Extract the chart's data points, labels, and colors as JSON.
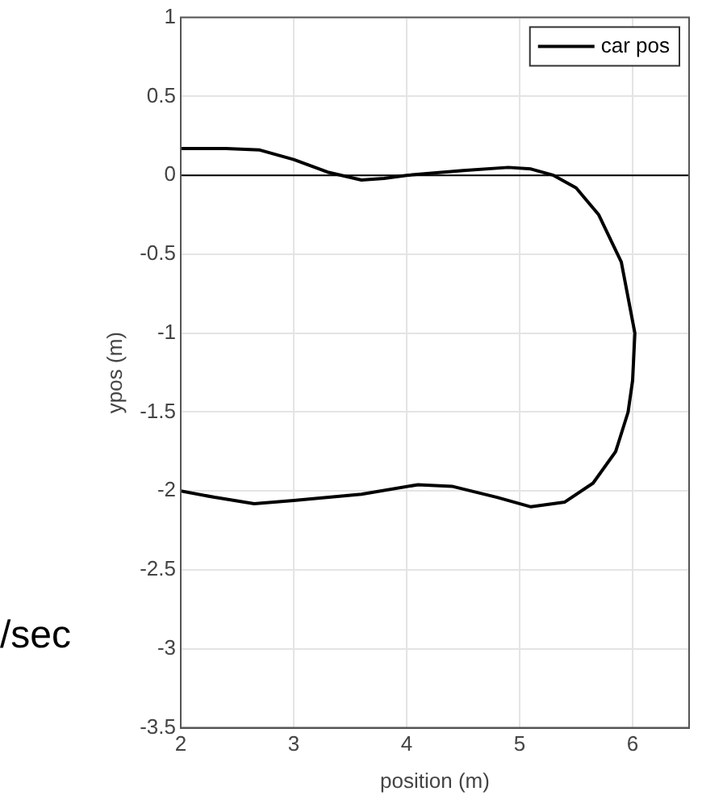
{
  "chart_data": {
    "type": "line",
    "xlabel": "position (m)",
    "ylabel": "ypos (m)",
    "xlim": [
      2,
      6.5
    ],
    "xticks": [
      2,
      3,
      4,
      5,
      6
    ],
    "ylim": [
      -3.5,
      1
    ],
    "yticks": [
      -3.5,
      -3,
      -2.5,
      -2,
      -1.5,
      -1,
      -0.5,
      0,
      0.5,
      1
    ],
    "grid": true,
    "legend": "top right",
    "marker": "none",
    "line_style": "solid",
    "ref_lines": [
      {
        "axis": "y",
        "value": 0,
        "color": "#000000"
      }
    ],
    "annotations": [
      "/sec"
    ],
    "series": [
      {
        "name": "car pos",
        "color": "#000000",
        "x": [
          2,
          2.4,
          2.7,
          3,
          3.3,
          3.6,
          3.8,
          4,
          4.5,
          4.9,
          5.1,
          5.3,
          5.5,
          5.7,
          5.9,
          6.02,
          6,
          5.96,
          5.85,
          5.65,
          5.4,
          5.1,
          4.8,
          4.4,
          4.1,
          3.6,
          3,
          2.65,
          2.3,
          2
        ],
        "values": [
          0.17,
          0.17,
          0.16,
          0.1,
          0.02,
          -0.03,
          -0.02,
          0,
          0.03,
          0.05,
          0.04,
          0,
          -0.08,
          -0.25,
          -0.55,
          -1,
          -1.3,
          -1.5,
          -1.75,
          -1.95,
          -2.07,
          -2.1,
          -2.04,
          -1.97,
          -1.96,
          -2.02,
          -2.06,
          -2.08,
          -2.04,
          -2
        ]
      }
    ]
  }
}
